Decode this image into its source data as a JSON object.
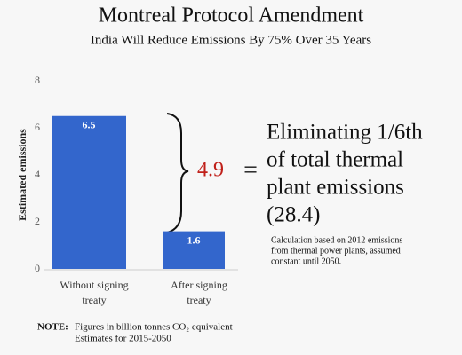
{
  "chart_data": {
    "type": "bar",
    "title": "Montreal Protocol Amendment",
    "subtitle": "India Will Reduce Emissions By 75% Over 35 Years",
    "y_label": "Estimated emissions",
    "categories": [
      "Without signing treaty",
      "After signing treaty"
    ],
    "values": [
      6.5,
      1.6
    ],
    "color": "#3366cc",
    "ylim": [
      0,
      8
    ],
    "yticks": [
      0,
      2,
      4,
      6,
      8
    ],
    "grid": false,
    "difference_label": "4.9",
    "equals": "=",
    "annotation_lines": [
      "Eliminating 1/6th",
      "of total thermal",
      "plant emissions",
      "(28.4)"
    ],
    "footnote_lines": [
      "Calculation based on 2012 emissions",
      "from thermal power plants, assumed",
      "constant until 2050."
    ],
    "note_label": "NOTE:",
    "note_lines": [
      "Figures in billion tonnes CO₂ equivalent",
      "Estimates for 2015-2050"
    ]
  }
}
